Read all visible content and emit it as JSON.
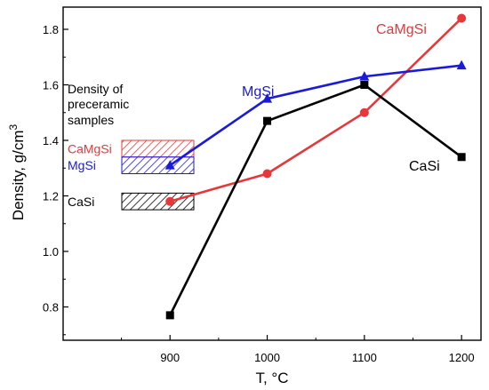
{
  "chart_data": {
    "type": "line",
    "xlabel": "T, °C",
    "ylabel": "Density, g/cm³",
    "xlim": [
      790,
      1220
    ],
    "ylim": [
      0.68,
      1.88
    ],
    "x_ticks": [
      900,
      1000,
      1100,
      1200
    ],
    "y_ticks": [
      0.8,
      1.0,
      1.2,
      1.4,
      1.6,
      1.8
    ],
    "grid": false,
    "series": [
      {
        "name": "CaMgSi",
        "color": "#e8373a",
        "marker": "circle",
        "x": [
          900,
          1000,
          1100,
          1200
        ],
        "y": [
          1.18,
          1.28,
          1.5,
          1.84
        ]
      },
      {
        "name": "MgSi",
        "color": "#1a1adb",
        "marker": "triangle",
        "x": [
          900,
          1000,
          1100,
          1200
        ],
        "y": [
          1.31,
          1.55,
          1.63,
          1.67
        ]
      },
      {
        "name": "CaSi",
        "color": "#000000",
        "marker": "square",
        "x": [
          900,
          1000,
          1100,
          1200
        ],
        "y": [
          0.77,
          1.47,
          1.6,
          1.34
        ]
      }
    ],
    "annotation": {
      "title_lines": [
        "Density of",
        "preceramic",
        "samples"
      ],
      "bands": [
        {
          "label": "CaMgSi",
          "color": "#e8373a",
          "y_range": [
            1.34,
            1.4
          ]
        },
        {
          "label": "MgSi",
          "color": "#1a1adb",
          "y_range": [
            1.28,
            1.34
          ]
        },
        {
          "label": "CaSi",
          "color": "#000000",
          "y_range": [
            1.15,
            1.21
          ]
        }
      ]
    }
  }
}
